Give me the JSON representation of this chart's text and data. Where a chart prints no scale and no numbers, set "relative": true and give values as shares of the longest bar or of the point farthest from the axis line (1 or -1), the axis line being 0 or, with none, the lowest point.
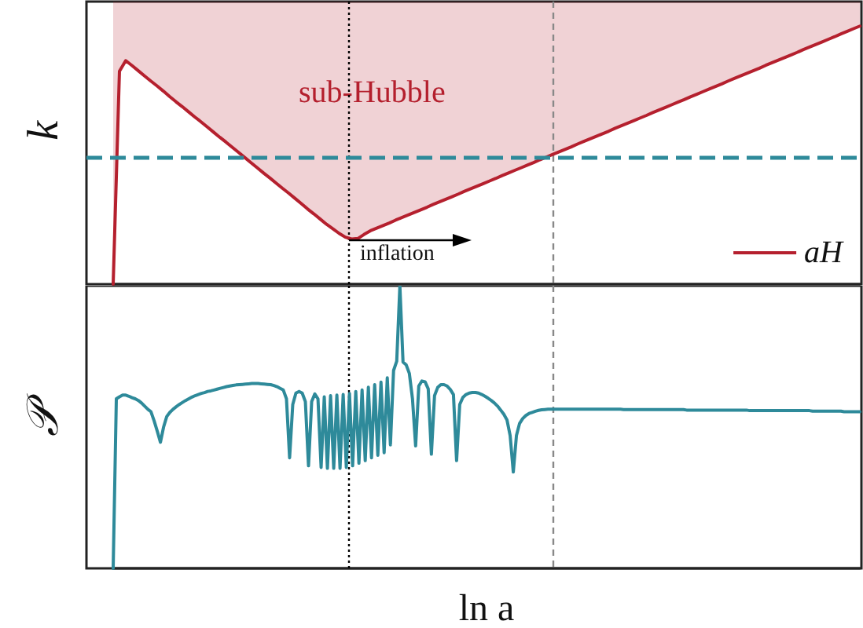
{
  "chart_data": [
    {
      "type": "line",
      "relative": true,
      "ylabel": "k",
      "grid": false,
      "legend": "bottom right",
      "marker": "none",
      "annotations": [
        "sub-Hubble",
        "inflation"
      ],
      "categories": [
        null,
        null,
        null,
        null,
        null,
        null,
        null,
        null,
        null,
        null,
        null,
        null,
        null,
        null,
        null,
        null,
        null,
        null,
        null,
        null,
        null,
        null,
        null,
        null,
        null,
        null,
        null,
        null,
        null,
        null,
        null,
        null,
        null,
        null,
        null,
        null,
        null,
        null,
        null,
        null,
        null,
        null,
        null,
        null,
        null,
        null,
        null,
        null,
        null,
        null,
        null,
        null,
        null,
        null,
        null,
        null,
        null,
        null,
        null,
        null,
        null,
        null,
        null,
        null,
        null,
        null,
        null,
        null,
        null,
        null,
        null,
        null,
        null,
        null,
        null,
        null,
        null,
        null,
        null,
        null,
        null,
        null,
        null,
        null,
        null,
        null,
        null,
        null,
        null,
        null,
        null,
        null,
        null,
        null,
        null,
        null,
        null,
        null,
        null,
        null,
        null,
        null,
        null,
        null,
        null,
        null,
        null,
        null,
        null,
        null,
        null,
        null,
        null,
        null,
        null,
        null,
        null,
        null,
        null,
        null
      ],
      "series": [
        {
          "name": "aH",
          "color": "#b5202e",
          "line_style": "solid",
          "values": [
            0,
            0.825,
            0.866,
            0.847,
            0.827,
            0.807,
            0.787,
            0.768,
            0.748,
            0.727,
            0.707,
            0.688,
            0.668,
            0.648,
            0.629,
            0.609,
            0.589,
            0.569,
            0.55,
            0.53,
            0.51,
            0.49,
            0.47,
            0.45,
            0.43,
            0.411,
            0.391,
            0.371,
            0.352,
            0.332,
            0.312,
            0.291,
            0.272,
            0.252,
            0.232,
            0.215,
            0.197,
            0.182,
            0.175,
            0.177,
            0.193,
            0.207,
            0.217,
            0.227,
            0.237,
            0.248,
            0.258,
            0.268,
            0.278,
            0.288,
            0.298,
            0.309,
            0.319,
            0.329,
            0.339,
            0.349,
            0.36,
            0.37,
            0.38,
            0.39,
            0.4,
            0.41,
            0.421,
            0.431,
            0.441,
            0.451,
            0.461,
            0.471,
            0.482,
            0.492,
            0.502,
            0.512,
            0.522,
            0.532,
            0.543,
            0.553,
            0.563,
            0.573,
            0.583,
            0.593,
            0.604,
            0.614,
            0.624,
            0.634,
            0.644,
            0.654,
            0.665,
            0.675,
            0.685,
            0.695,
            0.705,
            0.715,
            0.726,
            0.736,
            0.746,
            0.756,
            0.766,
            0.776,
            0.787,
            0.797,
            0.807,
            0.817,
            0.827,
            0.837,
            0.848,
            0.858,
            0.868,
            0.878,
            0.888,
            0.898,
            0.909,
            0.919,
            0.929,
            0.939,
            0.949,
            0.959,
            0.97,
            0.98,
            0.99,
            1.0
          ],
          "lower": [
            0,
            0.825,
            0.866,
            0.847,
            0.827,
            0.807,
            0.787,
            0.768,
            0.748,
            0.727,
            0.707,
            0.688,
            0.668,
            0.648,
            0.629,
            0.609,
            0.589,
            0.569,
            0.55,
            0.53,
            0.51,
            0.49,
            0.47,
            0.45,
            0.43,
            0.411,
            0.391,
            0.371,
            0.352,
            0.332,
            0.312,
            0.291,
            0.272,
            0.252,
            0.232,
            0.215,
            0.197,
            0.182,
            0.175,
            0.177,
            0.193,
            0.207,
            0.217,
            0.227,
            0.237,
            0.248,
            0.258,
            0.268,
            0.278,
            0.288,
            0.298,
            0.309,
            0.319,
            0.329,
            0.339,
            0.349,
            0.36,
            0.37,
            0.38,
            0.39,
            0.4,
            0.41,
            0.421,
            0.431,
            0.441,
            0.451,
            0.461,
            0.471,
            0.482,
            0.492,
            0.502,
            0.512,
            0.522,
            0.532,
            0.543,
            0.553,
            0.563,
            0.573,
            0.583,
            0.593,
            0.604,
            0.614,
            0.624,
            0.634,
            0.644,
            0.654,
            0.665,
            0.675,
            0.685,
            0.695,
            0.705,
            0.715,
            0.726,
            0.736,
            0.746,
            0.756,
            0.766,
            0.776,
            0.787,
            0.797,
            0.807,
            0.817,
            0.827,
            0.837,
            0.848,
            0.858,
            0.868,
            0.878,
            0.888,
            0.898,
            0.909,
            0.919,
            0.929,
            0.939,
            0.949,
            0.959,
            0.97,
            0.98,
            0.99,
            1.0
          ],
          "upper": [
            1.095,
            1.095,
            1.095,
            1.095,
            1.095,
            1.095,
            1.095,
            1.095,
            1.095,
            1.095,
            1.095,
            1.095,
            1.095,
            1.095,
            1.095,
            1.095,
            1.095,
            1.095,
            1.095,
            1.095,
            1.095,
            1.095,
            1.095,
            1.095,
            1.095,
            1.095,
            1.095,
            1.095,
            1.095,
            1.095,
            1.095,
            1.095,
            1.095,
            1.095,
            1.095,
            1.095,
            1.095,
            1.095,
            1.095,
            1.095,
            1.095,
            1.095,
            1.095,
            1.095,
            1.095,
            1.095,
            1.095,
            1.095,
            1.095,
            1.095,
            1.095,
            1.095,
            1.095,
            1.095,
            1.095,
            1.095,
            1.095,
            1.095,
            1.095,
            1.095,
            1.095,
            1.095,
            1.095,
            1.095,
            1.095,
            1.095,
            1.095,
            1.095,
            1.095,
            1.095,
            1.095,
            1.095,
            1.095,
            1.095,
            1.095,
            1.095,
            1.095,
            1.095,
            1.095,
            1.095,
            1.095,
            1.095,
            1.095,
            1.095,
            1.095,
            1.095,
            1.095,
            1.095,
            1.095,
            1.095,
            1.095,
            1.095,
            1.095,
            1.095,
            1.095,
            1.095,
            1.095,
            1.095,
            1.095,
            1.095,
            1.095,
            1.095,
            1.095,
            1.095,
            1.095,
            1.095,
            1.095,
            1.095,
            1.095,
            1.095,
            1.095,
            1.095,
            1.095,
            1.095,
            1.095,
            1.095,
            1.095,
            1.095,
            1.095,
            1.095
          ]
        }
      ],
      "ref_lines": [
        {
          "axis": "y",
          "value": 0.493,
          "color": "#2e8a9a",
          "line_style": "dashed"
        }
      ]
    },
    {
      "type": "line",
      "relative": true,
      "ylabel": "𝒫",
      "xlabel": "ln a",
      "grid": false,
      "legend": false,
      "marker": "none",
      "categories": [
        null,
        null,
        null,
        null,
        null,
        null,
        null,
        null,
        null,
        null,
        null,
        null,
        null,
        null,
        null,
        null,
        null,
        null,
        null,
        null,
        null,
        null,
        null,
        null,
        null,
        null,
        null,
        null,
        null,
        null,
        null,
        null,
        null,
        null,
        null,
        null,
        null,
        null,
        null,
        null,
        null,
        null,
        null,
        null,
        null,
        null,
        null,
        null,
        null,
        null,
        null,
        null,
        null,
        null,
        null,
        null,
        null,
        null,
        null,
        null,
        null,
        null,
        null,
        null,
        null,
        null,
        null,
        null,
        null,
        null,
        null,
        null,
        null,
        null,
        null,
        null,
        null,
        null,
        null,
        null,
        null,
        null,
        null,
        null,
        null,
        null,
        null,
        null,
        null,
        null,
        null,
        null,
        null,
        null,
        null,
        null,
        null,
        null,
        null,
        null,
        null,
        null,
        null,
        null,
        null,
        null,
        null,
        null,
        null,
        null,
        null,
        null,
        null,
        null,
        null,
        null,
        null,
        null,
        null,
        null,
        null,
        null,
        null,
        null,
        null,
        null,
        null,
        null,
        null,
        null,
        null,
        null,
        null,
        null,
        null,
        null,
        null,
        null,
        null,
        null,
        null,
        null,
        null,
        null,
        null,
        null,
        null,
        null,
        null,
        null,
        null,
        null,
        null,
        null,
        null,
        null,
        null,
        null,
        null,
        null,
        null,
        null,
        null,
        null,
        null,
        null,
        null,
        null,
        null,
        null,
        null,
        null,
        null,
        null,
        null,
        null,
        null,
        null,
        null,
        null,
        null,
        null,
        null,
        null,
        null,
        null,
        null,
        null,
        null,
        null,
        null,
        null,
        null,
        null,
        null,
        null,
        null,
        null,
        null,
        null,
        null,
        null,
        null,
        null,
        null,
        null,
        null,
        null,
        null,
        null,
        null,
        null,
        null,
        null,
        null,
        null,
        null,
        null,
        null,
        null,
        null,
        null,
        null,
        null,
        null,
        null,
        null,
        null,
        null,
        null,
        null,
        null,
        null,
        null,
        null,
        null,
        null,
        null
      ],
      "series": [
        {
          "color": "#2e8a9a",
          "line_style": "solid",
          "values": [
            0,
            0.6,
            0.607,
            0.613,
            0.613,
            0.609,
            0.604,
            0.6,
            0.594,
            0.585,
            0.574,
            0.563,
            0.554,
            0.522,
            0.485,
            0.446,
            0.5,
            0.537,
            0.552,
            0.563,
            0.572,
            0.58,
            0.587,
            0.594,
            0.6,
            0.606,
            0.611,
            0.615,
            0.619,
            0.622,
            0.626,
            0.628,
            0.631,
            0.634,
            0.637,
            0.64,
            0.643,
            0.645,
            0.647,
            0.649,
            0.65,
            0.651,
            0.652,
            0.653,
            0.654,
            0.654,
            0.654,
            0.653,
            0.652,
            0.651,
            0.65,
            0.647,
            0.643,
            0.637,
            0.631,
            0.6,
            0.391,
            0.58,
            0.62,
            0.626,
            0.62,
            0.59,
            0.363,
            0.59,
            0.617,
            0.6,
            0.357,
            0.607,
            0.354,
            0.611,
            0.354,
            0.613,
            0.354,
            0.615,
            0.357,
            0.619,
            0.363,
            0.626,
            0.372,
            0.631,
            0.381,
            0.641,
            0.391,
            0.65,
            0.4,
            0.659,
            0.409,
            0.674,
            0.437,
            0.7,
            0.733,
            1,
            0.73,
            0.72,
            0.69,
            0.6,
            0.433,
            0.645,
            0.663,
            0.66,
            0.635,
            0.404,
            0.611,
            0.64,
            0.65,
            0.65,
            0.645,
            0.633,
            0.615,
            0.381,
            0.58,
            0.605,
            0.615,
            0.62,
            0.622,
            0.622,
            0.62,
            0.615,
            0.609,
            0.602,
            0.594,
            0.585,
            0.574,
            0.56,
            0.545,
            0.525,
            0.47,
            0.341,
            0.47,
            0.513,
            0.53,
            0.541,
            0.548,
            0.552,
            0.556,
            0.559,
            0.561,
            0.562,
            0.563,
            0.563,
            0.563,
            0.563,
            0.563,
            0.563,
            0.563,
            0.563,
            0.563,
            0.563,
            0.563,
            0.563,
            0.563,
            0.563,
            0.563,
            0.563,
            0.563,
            0.563,
            0.563,
            0.563,
            0.563,
            0.563,
            0.563,
            0.563,
            0.562,
            0.562,
            0.562,
            0.562,
            0.562,
            0.562,
            0.562,
            0.562,
            0.562,
            0.562,
            0.562,
            0.562,
            0.562,
            0.562,
            0.562,
            0.562,
            0.562,
            0.562,
            0.562,
            0.562,
            0.56,
            0.56,
            0.56,
            0.56,
            0.56,
            0.56,
            0.56,
            0.56,
            0.56,
            0.56,
            0.56,
            0.56,
            0.56,
            0.56,
            0.56,
            0.56,
            0.56,
            0.56,
            0.56,
            0.56,
            0.558,
            0.558,
            0.558,
            0.558,
            0.558,
            0.558,
            0.558,
            0.558,
            0.558,
            0.558,
            0.558,
            0.558,
            0.558,
            0.558,
            0.558,
            0.558,
            0.558,
            0.558,
            0.558,
            0.558,
            0.556,
            0.556,
            0.556,
            0.556,
            0.556,
            0.556,
            0.556,
            0.556,
            0.556,
            0.556,
            0.554,
            0.554,
            0.554,
            0.554,
            0.554,
            0.554
          ]
        }
      ]
    }
  ]
}
